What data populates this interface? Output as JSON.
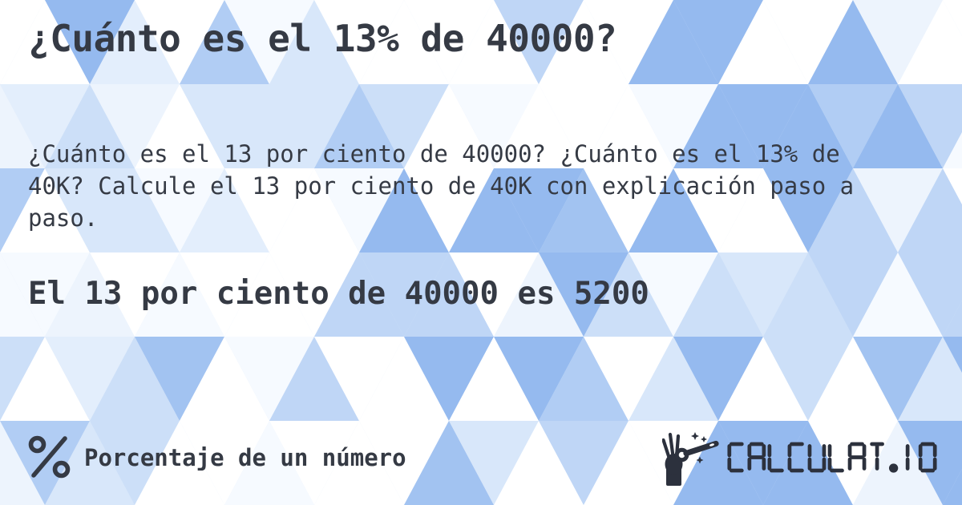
{
  "page": {
    "title": "¿Cuánto es el 13% de 40000?",
    "description": "¿Cuánto es el 13 por ciento de 40000? ¿Cuánto es el 13% de\n40K? Calcule el 13 por ciento de 40K con explicación paso a\npaso.",
    "answer": "El 13 por ciento de 40000 es 5200"
  },
  "footer": {
    "category_icon": "percent-icon",
    "category_label": "Porcentaje de un número",
    "logo_icon": "magic-wand-hand-icon",
    "logo_text": "CALCULAT.IO"
  },
  "colors": {
    "text": "#353a44",
    "logo": "#2c313d",
    "background_base": "#dce9fa",
    "pattern": [
      "#ffffff",
      "#f6faff",
      "#edf4fd",
      "#e3eefc",
      "#d8e7fa",
      "#ccdff8",
      "#bfd6f6",
      "#b1cdf4",
      "#a2c3f1",
      "#95baef"
    ]
  }
}
